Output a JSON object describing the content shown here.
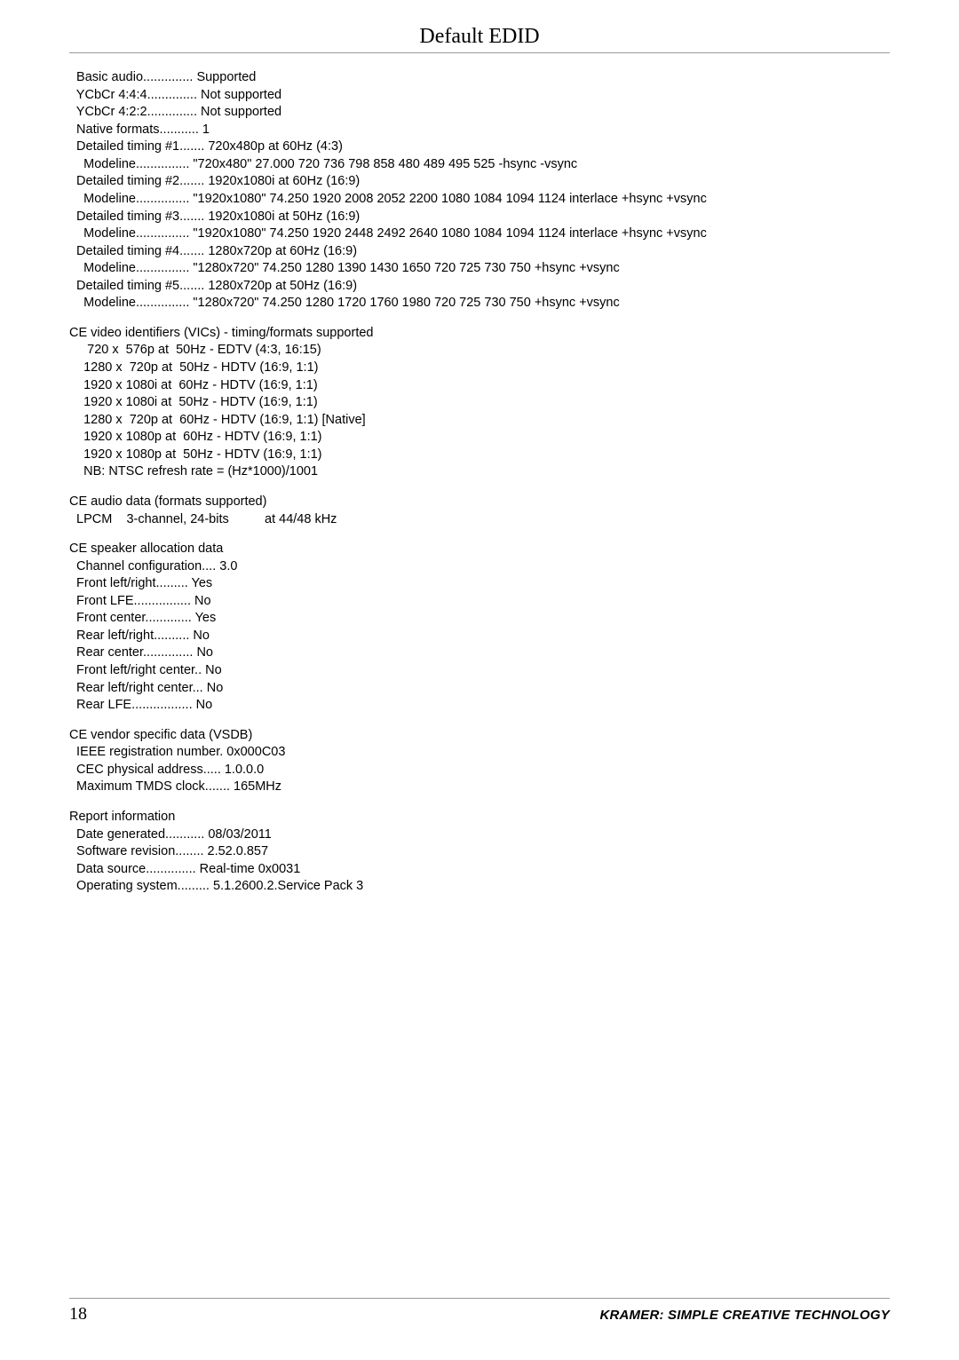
{
  "title": "Default EDID",
  "blocks": {
    "timing": [
      "  Basic audio.............. Supported",
      "  YCbCr 4:4:4.............. Not supported",
      "  YCbCr 4:2:2.............. Not supported",
      "  Native formats........... 1",
      "  Detailed timing #1....... 720x480p at 60Hz (4:3)",
      "    Modeline............... \"720x480\" 27.000 720 736 798 858 480 489 495 525 -hsync -vsync",
      "  Detailed timing #2....... 1920x1080i at 60Hz (16:9)",
      "    Modeline............... \"1920x1080\" 74.250 1920 2008 2052 2200 1080 1084 1094 1124 interlace +hsync +vsync",
      "  Detailed timing #3....... 1920x1080i at 50Hz (16:9)",
      "    Modeline............... \"1920x1080\" 74.250 1920 2448 2492 2640 1080 1084 1094 1124 interlace +hsync +vsync",
      "  Detailed timing #4....... 1280x720p at 60Hz (16:9)",
      "    Modeline............... \"1280x720\" 74.250 1280 1390 1430 1650 720 725 730 750 +hsync +vsync",
      "  Detailed timing #5....... 1280x720p at 50Hz (16:9)",
      "    Modeline............... \"1280x720\" 74.250 1280 1720 1760 1980 720 725 730 750 +hsync +vsync"
    ],
    "vics": [
      "CE video identifiers (VICs) - timing/formats supported",
      "     720 x  576p at  50Hz - EDTV (4:3, 16:15)",
      "    1280 x  720p at  50Hz - HDTV (16:9, 1:1)",
      "    1920 x 1080i at  60Hz - HDTV (16:9, 1:1)",
      "    1920 x 1080i at  50Hz - HDTV (16:9, 1:1)",
      "    1280 x  720p at  60Hz - HDTV (16:9, 1:1) [Native]",
      "    1920 x 1080p at  60Hz - HDTV (16:9, 1:1)",
      "    1920 x 1080p at  50Hz - HDTV (16:9, 1:1)",
      "    NB: NTSC refresh rate = (Hz*1000)/1001"
    ],
    "audio": [
      "CE audio data (formats supported)",
      "  LPCM    3-channel, 24-bits          at 44/48 kHz"
    ],
    "speaker": [
      "CE speaker allocation data",
      "  Channel configuration.... 3.0",
      "  Front left/right......... Yes",
      "  Front LFE................ No",
      "  Front center............. Yes",
      "  Rear left/right.......... No",
      "  Rear center.............. No",
      "  Front left/right center.. No",
      "  Rear left/right center... No",
      "  Rear LFE................. No"
    ],
    "vsdb": [
      "CE vendor specific data (VSDB)",
      "  IEEE registration number. 0x000C03",
      "  CEC physical address..... 1.0.0.0",
      "  Maximum TMDS clock....... 165MHz"
    ],
    "report": [
      "Report information",
      "  Date generated........... 08/03/2011",
      "  Software revision........ 2.52.0.857",
      "  Data source.............. Real-time 0x0031",
      "  Operating system......... 5.1.2600.2.Service Pack 3"
    ]
  },
  "footer": {
    "pageNumber": "18",
    "brand": "KRAMER: SIMPLE CREATIVE TECHNOLOGY"
  },
  "colors": {
    "text": "#000000",
    "rule": "#999999",
    "background": "#ffffff"
  },
  "typography": {
    "title_fontsize_pt": 18,
    "body_fontsize_pt": 11,
    "pagenum_fontsize_pt": 15,
    "brand_fontsize_pt": 11
  }
}
